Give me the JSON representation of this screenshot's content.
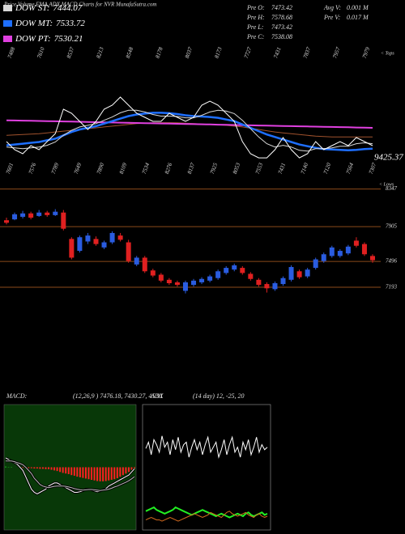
{
  "chart_data": [
    {
      "type": "line",
      "title": "Price,Volume,EMA,ADX,MACD Charts for NVR MunafaSutra.com",
      "values": [
        7485,
        7388,
        7339,
        7436,
        7388,
        7485,
        7581,
        7873,
        7824,
        7727,
        7630,
        7727,
        7873,
        7921,
        8018,
        7921,
        7824,
        7776,
        7727,
        7727,
        7824,
        7776,
        7727,
        7776,
        7921,
        7970,
        7921,
        7824,
        7727,
        7485,
        7339,
        7290,
        7290,
        7388,
        7533,
        7388,
        7290,
        7339,
        7485,
        7388,
        7436,
        7485,
        7436,
        7533,
        7485,
        7436
      ],
      "color": "#ffffff",
      "series": [
        {
          "name": "DOW ST:",
          "latest": 7444.07,
          "color": "#d8d8d8",
          "values": [
            7420,
            7410,
            7400,
            7410,
            7420,
            7440,
            7480,
            7560,
            7620,
            7660,
            7680,
            7700,
            7740,
            7780,
            7830,
            7860,
            7860,
            7840,
            7810,
            7790,
            7790,
            7785,
            7770,
            7770,
            7800,
            7840,
            7860,
            7850,
            7820,
            7740,
            7640,
            7540,
            7460,
            7420,
            7440,
            7420,
            7380,
            7370,
            7400,
            7400,
            7410,
            7430,
            7430,
            7460,
            7470,
            7460
          ]
        },
        {
          "name": "DOW MT:",
          "latest": 7533.72,
          "color": "#1e6fff",
          "values": [
            7440,
            7450,
            7460,
            7470,
            7480,
            7500,
            7520,
            7560,
            7600,
            7630,
            7650,
            7670,
            7700,
            7730,
            7760,
            7790,
            7810,
            7820,
            7830,
            7830,
            7825,
            7815,
            7800,
            7790,
            7785,
            7780,
            7770,
            7750,
            7730,
            7690,
            7650,
            7610,
            7570,
            7540,
            7510,
            7480,
            7450,
            7430,
            7410,
            7395,
            7390,
            7385,
            7380,
            7385,
            7395,
            7400
          ]
        },
        {
          "name": "DOW PT:",
          "latest": 7530.21,
          "color": "#e040e0",
          "values": [
            7740,
            7738,
            7736,
            7734,
            7732,
            7730,
            7728,
            7726,
            7724,
            7722,
            7720,
            7718,
            7716,
            7714,
            7712,
            7710,
            7708,
            7706,
            7704,
            7702,
            7700,
            7698,
            7696,
            7694,
            7692,
            7690,
            7688,
            7686,
            7684,
            7682,
            7680,
            7678,
            7676,
            7674,
            7672,
            7670,
            7668,
            7666,
            7664,
            7662,
            7660,
            7658,
            7656,
            7654,
            7652,
            7650
          ]
        },
        {
          "color": "#a0522d",
          "values": [
            7560,
            7565,
            7570,
            7575,
            7580,
            7590,
            7600,
            7610,
            7620,
            7630,
            7640,
            7650,
            7660,
            7670,
            7680,
            7690,
            7700,
            7705,
            7710,
            7712,
            7712,
            7710,
            7705,
            7700,
            7695,
            7690,
            7685,
            7680,
            7670,
            7660,
            7645,
            7630,
            7615,
            7600,
            7590,
            7580,
            7570,
            7560,
            7550,
            7545,
            7540,
            7540,
            7540,
            7540,
            7540,
            7540
          ]
        }
      ],
      "ylim": [
        7000,
        8600
      ],
      "stats": [
        {
          "label": "Pre O:",
          "value": 7473.42
        },
        {
          "label": "Pre H:",
          "value": 7578.68
        },
        {
          "label": "Pre L:",
          "value": 7473.42
        },
        {
          "label": "Pre C:",
          "value": 7538.08
        }
      ],
      "volume": [
        {
          "label": "Avg V:",
          "value": "0.001 M"
        },
        {
          "label": "Pre V:",
          "value": "0.017 M"
        }
      ],
      "high_labels": [
        7488,
        7610,
        8537,
        8213,
        8548,
        8178,
        8037,
        8173,
        7727,
        7431,
        7837,
        7957,
        7979
      ],
      "low_labels": [
        7601,
        7576,
        7789,
        7649,
        7890,
        8109,
        7534,
        8276,
        8137,
        7925,
        8053,
        7553,
        7431,
        7140,
        7120,
        7564,
        7307
      ],
      "tops_label": "< Tops",
      "lows_label": "< Lows",
      "last_label": 9425.37
    },
    {
      "type": "candlestick",
      "open": [
        7980,
        7990,
        8020,
        8060,
        8030,
        8070,
        8040,
        8070,
        7760,
        7620,
        7730,
        7760,
        7660,
        7720,
        7800,
        7720,
        7460,
        7540,
        7390,
        7340,
        7280,
        7250,
        7150,
        7220,
        7250,
        7270,
        7300,
        7360,
        7400,
        7420,
        7350,
        7280,
        7230,
        7170,
        7230,
        7280,
        7380,
        7320,
        7420,
        7500,
        7560,
        7560,
        7590,
        7740,
        7700,
        7560
      ],
      "high": [
        8010,
        8070,
        8090,
        8080,
        8100,
        8090,
        8110,
        8100,
        7780,
        7800,
        7830,
        7790,
        7740,
        7850,
        7830,
        7750,
        7560,
        7560,
        7410,
        7360,
        7300,
        7270,
        7270,
        7290,
        7310,
        7340,
        7400,
        7440,
        7470,
        7440,
        7370,
        7300,
        7250,
        7260,
        7320,
        7450,
        7400,
        7420,
        7540,
        7600,
        7680,
        7640,
        7690,
        7780,
        7720,
        7580
      ],
      "low": [
        7930,
        7980,
        8000,
        7990,
        8020,
        8020,
        8030,
        7860,
        7520,
        7600,
        7700,
        7680,
        7640,
        7700,
        7730,
        7480,
        7440,
        7360,
        7310,
        7250,
        7220,
        7200,
        7120,
        7200,
        7230,
        7250,
        7280,
        7340,
        7380,
        7340,
        7270,
        7200,
        7130,
        7150,
        7210,
        7260,
        7290,
        7300,
        7400,
        7480,
        7540,
        7540,
        7570,
        7660,
        7560,
        7480
      ],
      "close": [
        7950,
        8050,
        8060,
        8010,
        8070,
        8040,
        8080,
        7880,
        7540,
        7780,
        7800,
        7700,
        7720,
        7830,
        7750,
        7500,
        7540,
        7380,
        7330,
        7270,
        7240,
        7220,
        7250,
        7270,
        7290,
        7320,
        7380,
        7420,
        7450,
        7360,
        7290,
        7220,
        7180,
        7240,
        7300,
        7430,
        7310,
        7400,
        7520,
        7580,
        7660,
        7620,
        7670,
        7680,
        7580,
        7510
      ],
      "up_color": "#2a5ce0",
      "down_color": "#e02020",
      "level_color": "#8b4a1a",
      "ylim": [
        7050,
        8400
      ],
      "yticks": [
        8347,
        7905,
        7496,
        7193
      ]
    },
    {
      "type": "macd",
      "label": "MACD:",
      "params": "(12,26,9 ) 7476.18, 7430.27, 45.91",
      "series": [
        {
          "color": "#ffffff",
          "values": [
            30,
            25,
            20,
            15,
            10,
            0,
            -10,
            -30,
            -50,
            -70,
            -80,
            -85,
            -80,
            -75,
            -70,
            -60,
            -55,
            -50,
            -50,
            -55,
            -60,
            -65,
            -70,
            -75,
            -80,
            -80,
            -78,
            -75,
            -70,
            -70,
            -72,
            -75,
            -78,
            -76,
            -72,
            -68,
            -60,
            -55,
            -50,
            -45,
            -40,
            -35,
            -30,
            -25,
            -15,
            -5
          ]
        },
        {
          "color": "#bbbbbb",
          "values": [
            20,
            20,
            20,
            18,
            15,
            12,
            8,
            0,
            -10,
            -20,
            -35,
            -45,
            -55,
            -60,
            -63,
            -65,
            -63,
            -61,
            -60,
            -60,
            -60,
            -61,
            -63,
            -65,
            -68,
            -70,
            -72,
            -73,
            -72,
            -71,
            -71,
            -72,
            -73,
            -74,
            -73,
            -72,
            -70,
            -67,
            -63,
            -60,
            -56,
            -52,
            -48,
            -43,
            -37,
            -30
          ]
        }
      ],
      "histogram": [
        2,
        1,
        1,
        0,
        0,
        -1,
        -2,
        -2,
        -3,
        -3,
        -4,
        -4,
        -5,
        -5,
        -6,
        -6,
        -8,
        -10,
        -12,
        -15,
        -18,
        -20,
        -22,
        -25,
        -27,
        -30,
        -32,
        -34,
        -36,
        -38,
        -40,
        -42,
        -44,
        -45,
        -45,
        -44,
        -42,
        -40,
        -38,
        -35,
        -30,
        -25,
        -20,
        -15,
        -8,
        -3
      ],
      "up_color": "#22cc22",
      "down_color": "#ff2020",
      "background": "#083808",
      "ylim": [
        -200,
        200
      ]
    },
    {
      "type": "adx",
      "label": "ADX",
      "params": "(14 day) 12, -25, 20",
      "series": [
        {
          "color": "#ffffff",
          "values": [
            65,
            70,
            60,
            72,
            68,
            62,
            75,
            66,
            70,
            60,
            72,
            64,
            74,
            62,
            68,
            70,
            58,
            66,
            72,
            64,
            70,
            60,
            68,
            74,
            62,
            66,
            70,
            58,
            64,
            72,
            60,
            68,
            74,
            62,
            66,
            58,
            70,
            64,
            72,
            60,
            66,
            74,
            62,
            68,
            64,
            66
          ]
        },
        {
          "color": "#22ee22",
          "values": [
            15,
            16,
            17,
            18,
            16,
            15,
            14,
            13,
            14,
            15,
            16,
            18,
            17,
            16,
            15,
            14,
            13,
            12,
            13,
            14,
            15,
            16,
            15,
            14,
            13,
            12,
            11,
            12,
            13,
            12,
            11,
            10,
            11,
            12,
            13,
            12,
            11,
            13,
            14,
            12,
            11,
            12,
            13,
            14,
            12,
            13
          ]
        },
        {
          "color": "#d2691e",
          "values": [
            8,
            9,
            10,
            9,
            8,
            8,
            7,
            8,
            9,
            10,
            9,
            8,
            7,
            8,
            9,
            10,
            11,
            12,
            13,
            12,
            11,
            10,
            11,
            12,
            14,
            13,
            12,
            11,
            10,
            12,
            14,
            15,
            13,
            12,
            11,
            12,
            13,
            14,
            12,
            11,
            10,
            12,
            13,
            11,
            10,
            11
          ]
        }
      ],
      "ylim": [
        0,
        100
      ]
    }
  ]
}
